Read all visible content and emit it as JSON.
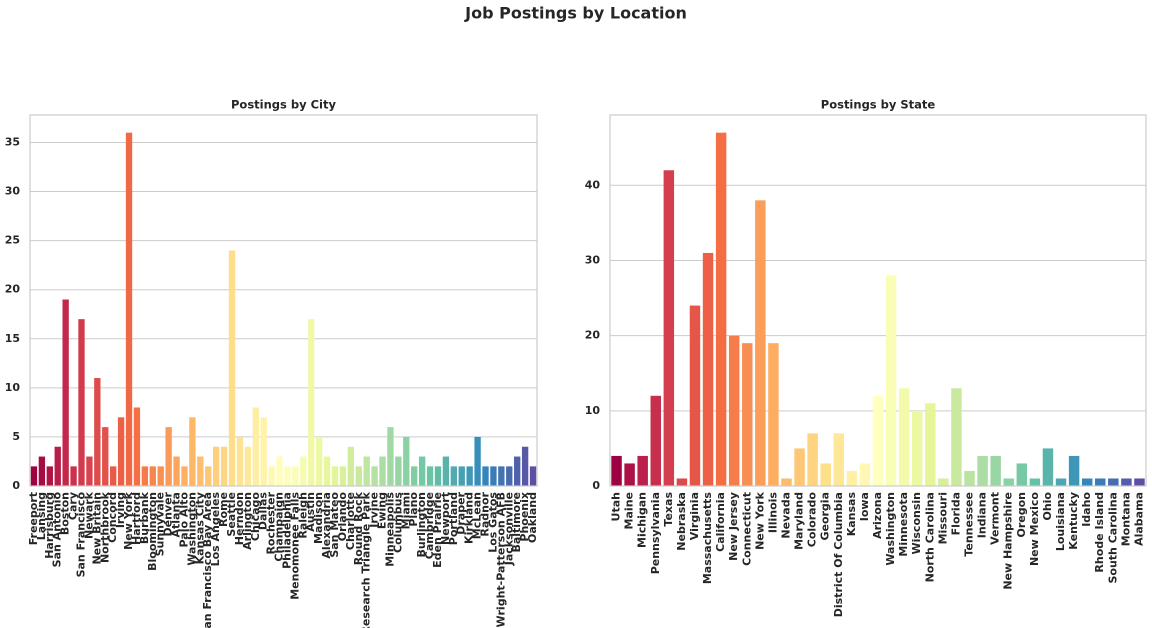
{
  "title": "Job Postings by Location",
  "chart_data": [
    {
      "type": "bar",
      "title": "Postings by City",
      "categories": [
        "Freeport",
        "Lansing",
        "Harrisburg",
        "San Antonio",
        "Boston",
        "Cary",
        "San Francisco",
        "Newark",
        "New Britain",
        "Northbrook",
        "Concord",
        "Irving",
        "New York",
        "Hartford",
        "Burbank",
        "Bloomington",
        "Sunnyvale",
        "Denver",
        "Atlanta",
        "Palo Alto",
        "Washington",
        "Kansas City",
        "San Francisco Bay Area",
        "Los Angeles",
        "Rome",
        "Seattle",
        "Herndon",
        "Arlington",
        "Chicago",
        "Dallas",
        "Rochester",
        "Champaign",
        "Philadelphia",
        "Menomonee Falls",
        "Raleigh",
        "Austin",
        "Madison",
        "Alexandria",
        "San Mateo",
        "Orlando",
        "Charlotte",
        "Round Rock",
        "Research Triangle Park",
        "Irvine",
        "Ewing",
        "Minneapolis",
        "Columbus",
        "Miami",
        "Plano",
        "Burlington",
        "Cambridge",
        "Eden Prairie",
        "Newport",
        "Portland",
        "Draper",
        "Kirkland",
        "McLean",
        "Radnor",
        "Los Gatos",
        "Wright-Patterson AFB",
        "Jacksonville",
        "Baltimore",
        "Phoenix",
        "Oakland"
      ],
      "values": [
        2,
        3,
        2,
        4,
        19,
        2,
        17,
        3,
        11,
        6,
        2,
        7,
        36,
        8,
        2,
        2,
        2,
        6,
        3,
        2,
        7,
        3,
        2,
        4,
        4,
        24,
        5,
        4,
        8,
        7,
        2,
        3,
        2,
        2,
        3,
        17,
        5,
        3,
        2,
        2,
        4,
        2,
        3,
        2,
        3,
        6,
        3,
        5,
        2,
        3,
        2,
        2,
        3,
        2,
        2,
        2,
        5,
        2,
        2,
        2,
        2,
        3,
        4,
        2
      ],
      "palette": [
        "#9e0142",
        "#d53e4f",
        "#f46d43",
        "#fdae61",
        "#fee08b",
        "#ffffbf",
        "#e6f598",
        "#abdda4",
        "#66c2a5",
        "#3288bd",
        "#5e4fa2"
      ],
      "ylim": [
        0,
        37.8
      ],
      "yticks": [
        0,
        5,
        10,
        15,
        20,
        25,
        30,
        35
      ],
      "grid": true
    },
    {
      "type": "bar",
      "title": "Postings by State",
      "categories": [
        "Utah",
        "Maine",
        "Michigan",
        "Pennsylvania",
        "Texas",
        "Nebraska",
        "Virginia",
        "Massachusetts",
        "California",
        "New Jersey",
        "Connecticut",
        "New York",
        "Illinois",
        "Nevada",
        "Maryland",
        "Colorado",
        "Georgia",
        "District Of Columbia",
        "Kansas",
        "Iowa",
        "Arizona",
        "Washington",
        "Minnesota",
        "Wisconsin",
        "North Carolina",
        "Missouri",
        "Florida",
        "Tennessee",
        "Indiana",
        "Vermont",
        "New Hampshire",
        "Oregon",
        "New Mexico",
        "Ohio",
        "Louisiana",
        "Kentucky",
        "Idaho",
        "Rhode Island",
        "South Carolina",
        "Montana",
        "Alabama"
      ],
      "values": [
        4,
        3,
        4,
        12,
        42,
        1,
        24,
        31,
        47,
        20,
        19,
        38,
        19,
        1,
        5,
        7,
        3,
        7,
        2,
        3,
        12,
        28,
        13,
        10,
        11,
        1,
        13,
        2,
        4,
        4,
        1,
        3,
        1,
        5,
        1,
        4,
        1,
        1,
        1,
        1,
        1
      ],
      "palette": [
        "#9e0142",
        "#d53e4f",
        "#f46d43",
        "#fdae61",
        "#fee08b",
        "#ffffbf",
        "#e6f598",
        "#abdda4",
        "#66c2a5",
        "#3288bd",
        "#5e4fa2"
      ],
      "ylim": [
        0,
        49.35
      ],
      "yticks": [
        0,
        10,
        20,
        30,
        40
      ],
      "grid": true
    }
  ]
}
